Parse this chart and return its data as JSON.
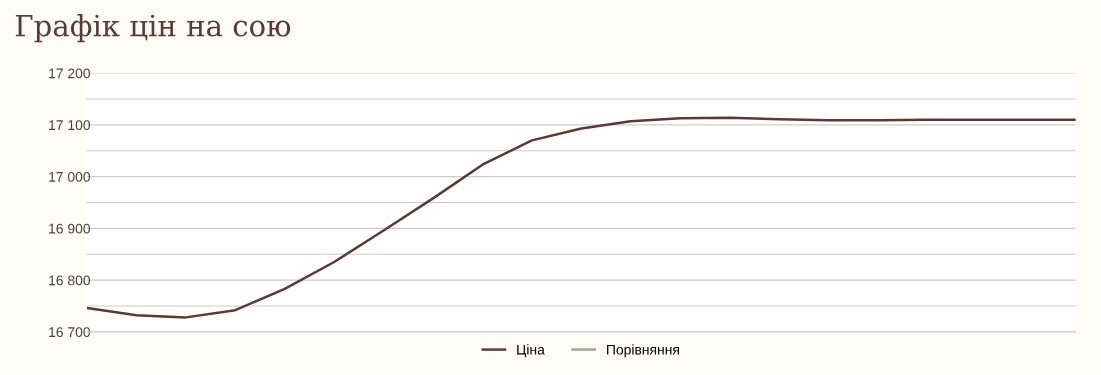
{
  "chart_data": {
    "type": "line",
    "title": "Графік цін на сою",
    "categories": [
      null,
      null,
      null,
      null,
      null,
      null,
      null,
      null,
      null,
      null,
      null,
      null,
      null,
      null,
      null,
      null,
      null,
      null,
      null,
      null,
      null
    ],
    "series": [
      {
        "name": "Ціна",
        "color": "#5a3a32",
        "values": [
          16746,
          16732,
          16728,
          16742,
          16783,
          16835,
          16896,
          16958,
          17023,
          17070,
          17093,
          17107,
          17113,
          17114,
          17111,
          17109,
          17109,
          17110,
          17110,
          17110,
          17110
        ]
      },
      {
        "name": "Порівняння",
        "color": "#a3a88f",
        "values": [
          null,
          null,
          null,
          null,
          null,
          null,
          null,
          null,
          null,
          null,
          null,
          null,
          null,
          null,
          null,
          null,
          null,
          null,
          null,
          null,
          null
        ]
      }
    ],
    "ylim": [
      16700,
      17200
    ],
    "yticks": [
      {
        "value": 16700,
        "label": "16 700"
      },
      {
        "value": 16750,
        "label": null
      },
      {
        "value": 16800,
        "label": "16 800"
      },
      {
        "value": 16850,
        "label": null
      },
      {
        "value": 16900,
        "label": "16 900"
      },
      {
        "value": 16950,
        "label": null
      },
      {
        "value": 17000,
        "label": "17 000"
      },
      {
        "value": 17050,
        "label": null
      },
      {
        "value": 17100,
        "label": "17 100"
      },
      {
        "value": 17150,
        "label": null
      },
      {
        "value": 17200,
        "label": "17 200"
      }
    ],
    "grid": "y",
    "legend": "bottom",
    "marker": "none",
    "line_style": "solid"
  }
}
